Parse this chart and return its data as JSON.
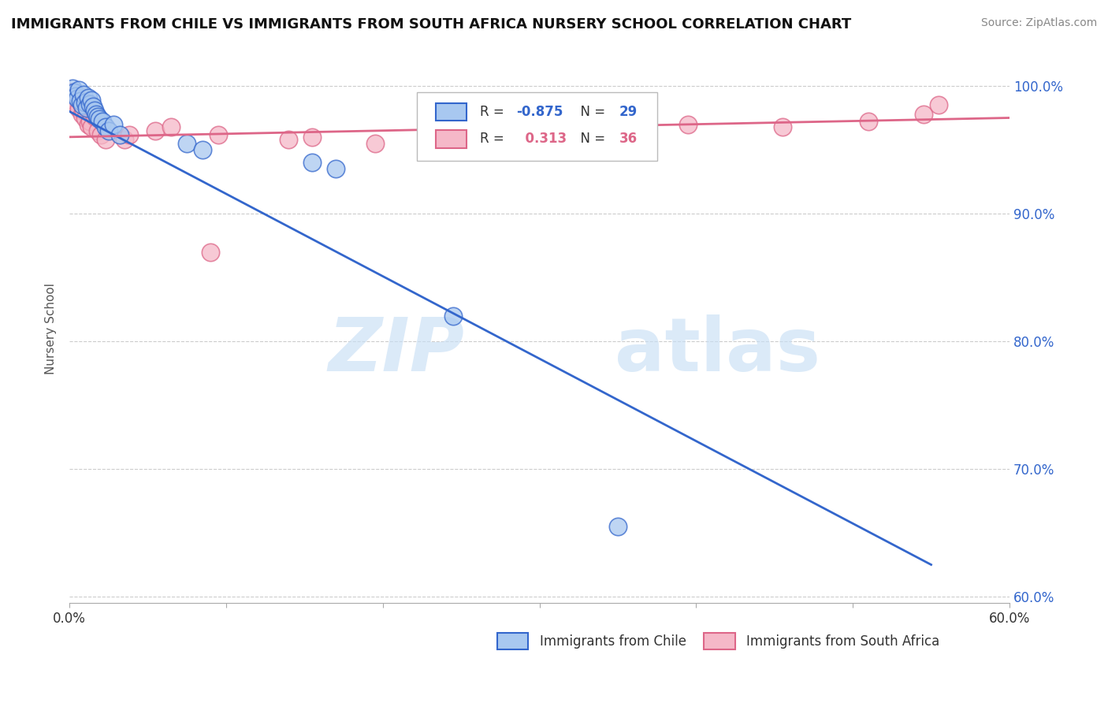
{
  "title": "IMMIGRANTS FROM CHILE VS IMMIGRANTS FROM SOUTH AFRICA NURSERY SCHOOL CORRELATION CHART",
  "source": "Source: ZipAtlas.com",
  "ylabel": "Nursery School",
  "xlim": [
    0.0,
    0.6
  ],
  "ylim": [
    0.595,
    1.025
  ],
  "xticks": [
    0.0,
    0.1,
    0.2,
    0.3,
    0.4,
    0.5,
    0.6
  ],
  "yticks": [
    0.6,
    0.7,
    0.8,
    0.9,
    1.0
  ],
  "ytick_labels": [
    "60.0%",
    "70.0%",
    "80.0%",
    "90.0%",
    "100.0%"
  ],
  "xtick_labels": [
    "0.0%",
    "",
    "",
    "",
    "",
    "",
    "60.0%"
  ],
  "chile_color": "#a8c8f0",
  "sa_color": "#f5b8c8",
  "chile_line_color": "#3366cc",
  "sa_line_color": "#dd6688",
  "R_chile": -0.875,
  "N_chile": 29,
  "R_sa": 0.313,
  "N_sa": 36,
  "watermark_zip": "ZIP",
  "watermark_atlas": "atlas",
  "chile_trend_x0": 0.0,
  "chile_trend_y0": 0.98,
  "chile_trend_x1": 0.55,
  "chile_trend_y1": 0.625,
  "sa_trend_x0": 0.0,
  "sa_trend_y0": 0.96,
  "sa_trend_x1": 0.6,
  "sa_trend_y1": 0.975,
  "chile_points_x": [
    0.002,
    0.003,
    0.004,
    0.005,
    0.006,
    0.007,
    0.008,
    0.009,
    0.01,
    0.011,
    0.012,
    0.013,
    0.014,
    0.015,
    0.016,
    0.017,
    0.018,
    0.019,
    0.021,
    0.023,
    0.025,
    0.028,
    0.032,
    0.075,
    0.085,
    0.155,
    0.17,
    0.245,
    0.35
  ],
  "chile_points_y": [
    0.998,
    0.995,
    0.992,
    0.99,
    0.997,
    0.988,
    0.985,
    0.993,
    0.987,
    0.983,
    0.991,
    0.986,
    0.989,
    0.984,
    0.981,
    0.978,
    0.976,
    0.974,
    0.972,
    0.968,
    0.965,
    0.97,
    0.962,
    0.955,
    0.95,
    0.94,
    0.935,
    0.82,
    0.655
  ],
  "sa_points_x": [
    0.001,
    0.002,
    0.003,
    0.004,
    0.005,
    0.006,
    0.007,
    0.008,
    0.009,
    0.01,
    0.011,
    0.012,
    0.013,
    0.014,
    0.016,
    0.018,
    0.02,
    0.023,
    0.035,
    0.038,
    0.055,
    0.065,
    0.09,
    0.095,
    0.14,
    0.155,
    0.195,
    0.24,
    0.26,
    0.31,
    0.35,
    0.395,
    0.455,
    0.51,
    0.545,
    0.555
  ],
  "sa_points_y": [
    0.995,
    0.99,
    0.988,
    0.985,
    0.993,
    0.982,
    0.987,
    0.978,
    0.98,
    0.975,
    0.984,
    0.97,
    0.972,
    0.968,
    0.976,
    0.965,
    0.962,
    0.958,
    0.958,
    0.962,
    0.965,
    0.968,
    0.87,
    0.962,
    0.958,
    0.96,
    0.955,
    0.96,
    0.965,
    0.962,
    0.968,
    0.97,
    0.968,
    0.972,
    0.978,
    0.985
  ]
}
